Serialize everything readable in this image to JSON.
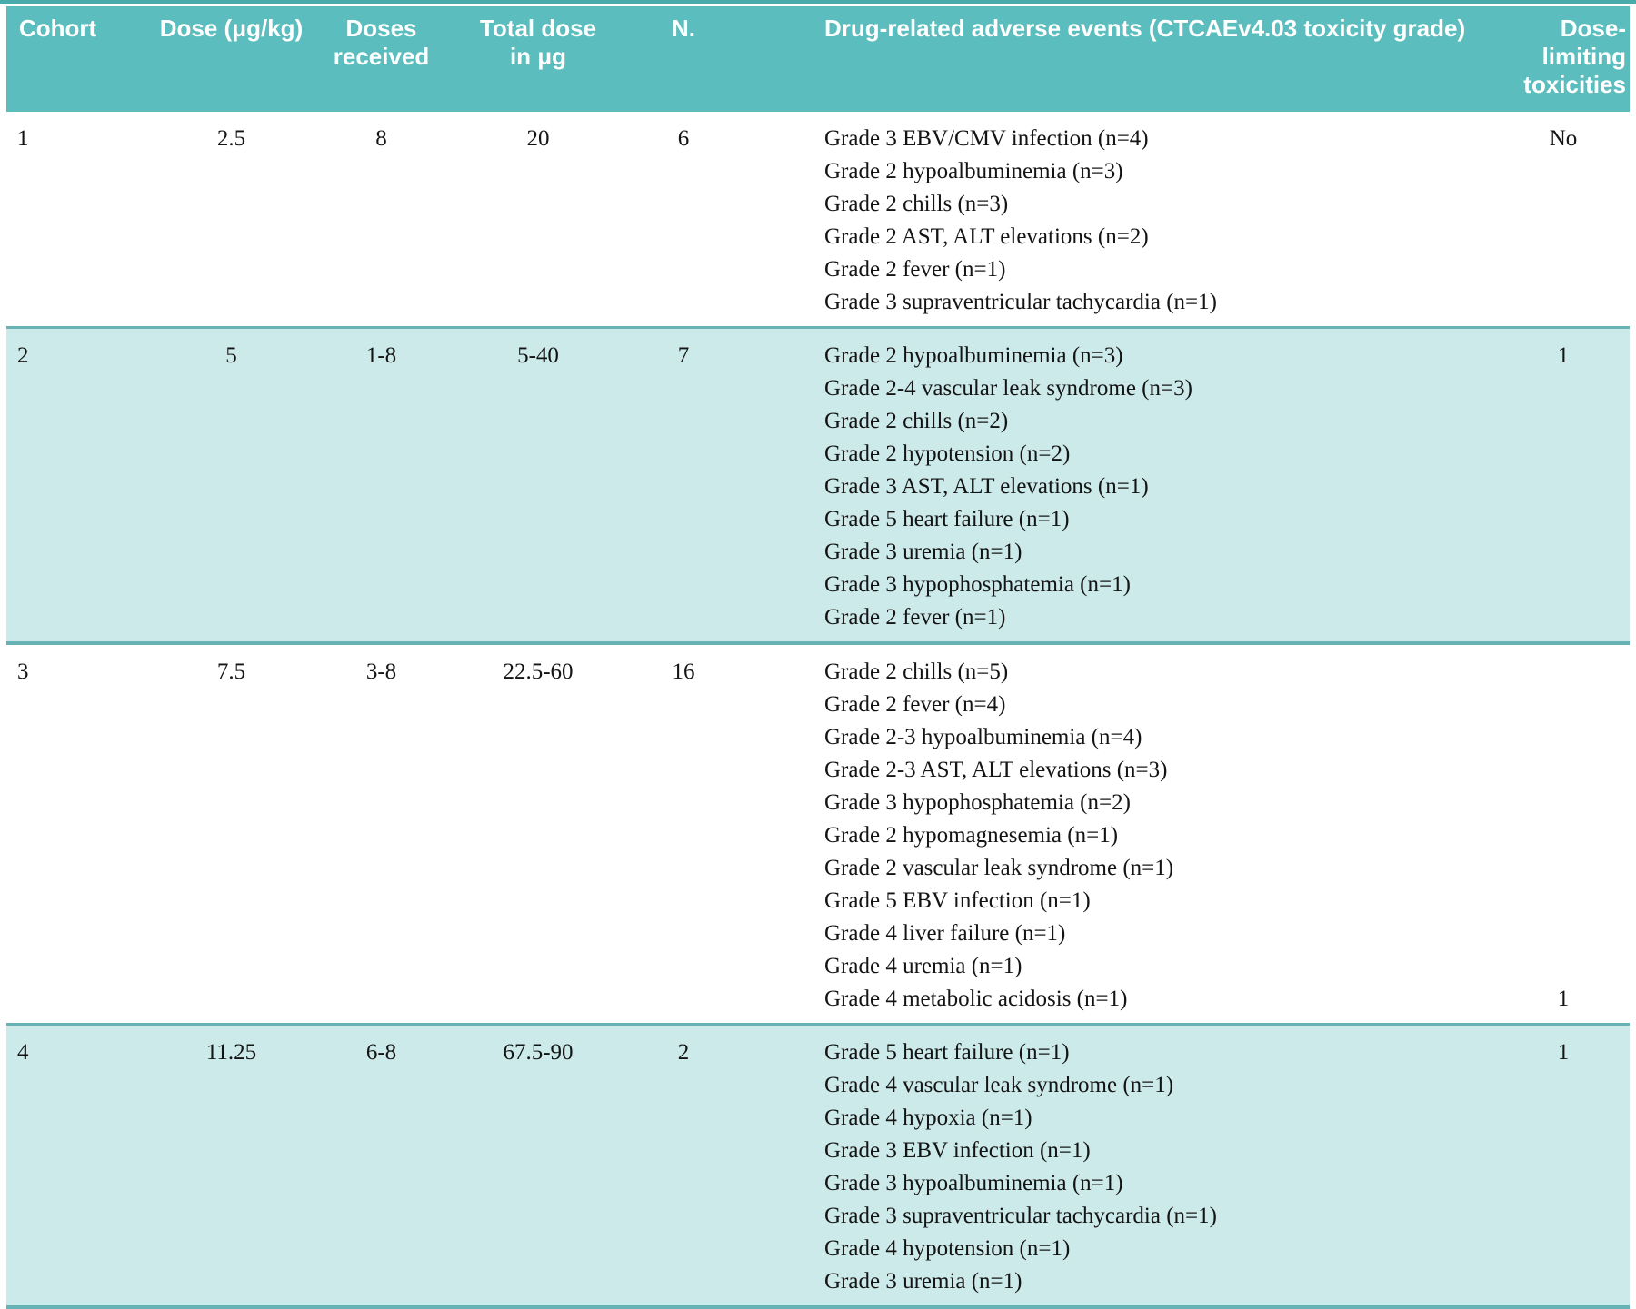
{
  "colors": {
    "header_bg": "#5bbdbe",
    "shaded_row_bg": "#cdeaea",
    "shaded_row_border": "#66b2b5",
    "top_rule": "#4aabad",
    "header_text": "#ffffff",
    "body_text": "#141414"
  },
  "table": {
    "columns": [
      {
        "key": "cohort",
        "label": "Cohort"
      },
      {
        "key": "dose",
        "label": "Dose (μg/kg)"
      },
      {
        "key": "doses",
        "label": "Doses\nreceived"
      },
      {
        "key": "total",
        "label": "Total dose\nin μg"
      },
      {
        "key": "n",
        "label": "N."
      },
      {
        "key": "events",
        "label": "Drug-related adverse events (CTCAEv4.03 toxicity grade)"
      },
      {
        "key": "dlt",
        "label": "Dose-limiting\ntoxicities"
      }
    ],
    "rows": [
      {
        "shaded": false,
        "cohort": "1",
        "dose": "2.5",
        "doses": "8",
        "total": "20",
        "n": "6",
        "events": [
          "Grade 3 EBV/CMV infection (n=4)",
          "Grade 2 hypoalbuminemia (n=3)",
          "Grade 2 chills (n=3)",
          "Grade 2 AST, ALT elevations (n=2)",
          "Grade 2 fever (n=1)",
          "Grade 3 supraventricular tachycardia (n=1)"
        ],
        "dlt": {
          "text": "No",
          "valign": "top"
        }
      },
      {
        "shaded": true,
        "cohort": "2",
        "dose": "5",
        "doses": "1-8",
        "total": "5-40",
        "n": "7",
        "events": [
          "Grade 2 hypoalbuminemia (n=3)",
          "Grade 2-4 vascular leak syndrome (n=3)",
          "Grade 2 chills (n=2)",
          "Grade 2 hypotension (n=2)",
          "Grade 3 AST, ALT elevations (n=1)",
          "Grade 5 heart failure (n=1)",
          "Grade 3 uremia (n=1)",
          "Grade 3 hypophosphatemia (n=1)",
          "Grade 2 fever (n=1)"
        ],
        "dlt": {
          "text": "1",
          "valign": "top"
        }
      },
      {
        "shaded": false,
        "cohort": "3",
        "dose": "7.5",
        "doses": "3-8",
        "total": "22.5-60",
        "n": "16",
        "events": [
          "Grade 2 chills (n=5)",
          "Grade 2 fever (n=4)",
          "Grade 2-3 hypoalbuminemia (n=4)",
          "Grade 2-3 AST, ALT elevations (n=3)",
          "Grade 3 hypophosphatemia (n=2)",
          "Grade 2 hypomagnesemia (n=1)",
          "Grade 2 vascular leak syndrome (n=1)",
          "Grade 5 EBV infection (n=1)",
          "Grade 4 liver failure (n=1)",
          "Grade 4 uremia (n=1)",
          "Grade 4 metabolic acidosis (n=1)"
        ],
        "dlt": {
          "text": "1",
          "valign": "bottom"
        }
      },
      {
        "shaded": true,
        "cohort": "4",
        "dose": "11.25",
        "doses": "6-8",
        "total": "67.5-90",
        "n": "2",
        "events": [
          "Grade 5 heart failure (n=1)",
          "Grade 4 vascular leak syndrome (n=1)",
          "Grade 4 hypoxia (n=1)",
          "Grade 3 EBV infection (n=1)",
          "Grade 3 hypoalbuminemia (n=1)",
          "Grade 3 supraventricular tachycardia (n=1)",
          "Grade 4 hypotension (n=1)",
          "Grade 3 uremia (n=1)"
        ],
        "dlt": {
          "text": "1",
          "valign": "top"
        }
      }
    ]
  }
}
